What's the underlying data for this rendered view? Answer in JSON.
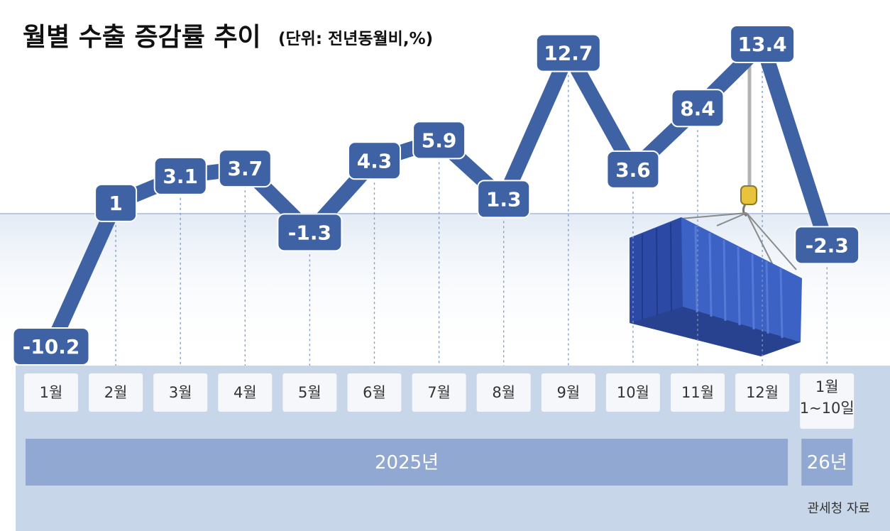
{
  "title": "월별 수출 증감률 추이",
  "unit": "(단위: 전년동월비,%)",
  "source": "관세청 자료",
  "year_groups": [
    {
      "label": "2025년",
      "span": [
        0,
        11
      ]
    },
    {
      "label": "26년",
      "span": [
        12,
        12
      ]
    }
  ],
  "colors": {
    "line": "#3e62a3",
    "label_box": "#3e62a3",
    "axis_band": "#c8d6ea",
    "month_box": "#f5f7fb",
    "year_bar": "#90a8d2",
    "container": "#3d63c4"
  },
  "illustration": "shipping-container-hanging-from-crane-hook",
  "chart_data": {
    "type": "line",
    "title": "월별 수출 증감률 추이",
    "unit": "(단위: 전년동월비,%)",
    "categories": [
      "1월",
      "2월",
      "3월",
      "4월",
      "5월",
      "6월",
      "7월",
      "8월",
      "9월",
      "10월",
      "11월",
      "12월",
      "1월 1~10일"
    ],
    "category_lines": [
      [
        "1월"
      ],
      [
        "2월"
      ],
      [
        "3월"
      ],
      [
        "4월"
      ],
      [
        "5월"
      ],
      [
        "6월"
      ],
      [
        "7월"
      ],
      [
        "8월"
      ],
      [
        "9월"
      ],
      [
        "10월"
      ],
      [
        "11월"
      ],
      [
        "12월"
      ],
      [
        "1월",
        "1~10일"
      ]
    ],
    "values": [
      -10.2,
      1,
      3.1,
      3.7,
      -1.3,
      4.3,
      5.9,
      1.3,
      12.7,
      3.6,
      8.4,
      13.4,
      -2.3
    ],
    "value_labels": [
      "-10.2",
      "1",
      "3.1",
      "3.7",
      "-1.3",
      "4.3",
      "5.9",
      "1.3",
      "12.7",
      "3.6",
      "8.4",
      "13.4",
      "-2.3"
    ],
    "grid": false,
    "legend": "none"
  }
}
